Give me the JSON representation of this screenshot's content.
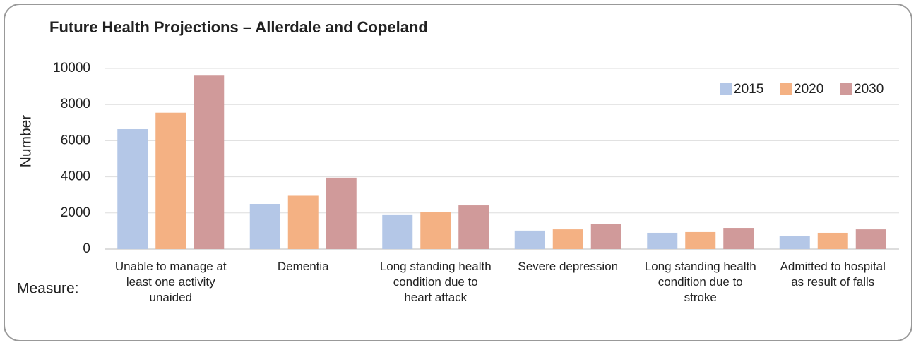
{
  "chart_data": {
    "type": "bar",
    "title": "Future Health Projections – Allerdale and Copeland",
    "y_label": "Number",
    "x_label": "Measure:",
    "categories": [
      "Unable to manage at least one activity unaided",
      "Dementia",
      "Long standing health condition due to heart attack",
      "Severe depression",
      "Long standing health condition due to stroke",
      "Admitted to hospital as result of falls"
    ],
    "series": [
      {
        "name": "2015",
        "color": "#b4c7e7",
        "values": [
          6640,
          2500,
          1880,
          1020,
          900,
          740
        ]
      },
      {
        "name": "2020",
        "color": "#f4b183",
        "values": [
          7550,
          2950,
          2050,
          1090,
          940,
          900
        ]
      },
      {
        "name": "2030",
        "color": "#d09a9a",
        "values": [
          9600,
          3950,
          2420,
          1370,
          1170,
          1090
        ]
      }
    ],
    "ylim": [
      0,
      10000
    ],
    "yticks": [
      0,
      2000,
      4000,
      6000,
      8000,
      10000
    ],
    "grid": true,
    "legend": "top-right"
  }
}
